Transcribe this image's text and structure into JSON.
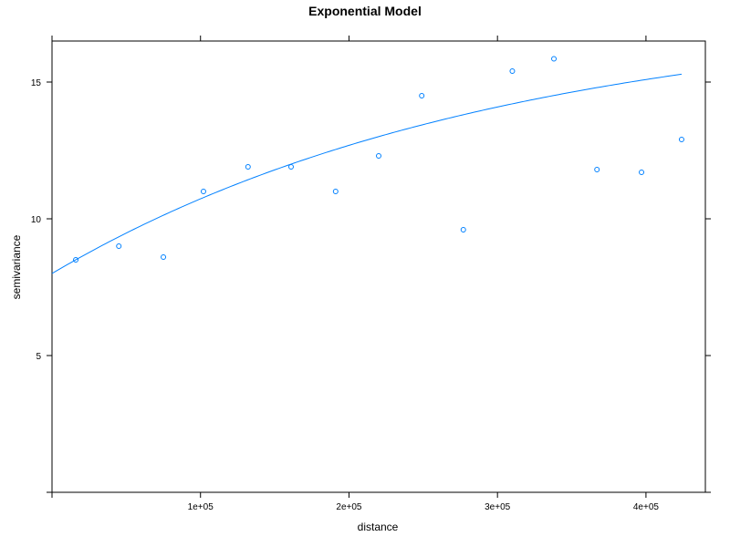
{
  "chart_data": {
    "type": "scatter",
    "title": "Exponential Model",
    "xlabel": "distance",
    "ylabel": "semivariance",
    "xlim": [
      0,
      440000
    ],
    "ylim": [
      0,
      16.5
    ],
    "x_ticks": [
      100000,
      200000,
      300000,
      400000
    ],
    "x_tick_labels": [
      "1e+05",
      "2e+05",
      "3e+05",
      "4e+05"
    ],
    "y_ticks": [
      5,
      10,
      15
    ],
    "y_tick_labels": [
      "5",
      "10",
      "15"
    ],
    "grid": false,
    "points": {
      "x": [
        16000,
        45000,
        75000,
        102000,
        132000,
        161000,
        191000,
        220000,
        249000,
        277000,
        310000,
        338000,
        367000,
        397000,
        424000
      ],
      "y": [
        8.5,
        9.0,
        8.6,
        11.0,
        11.9,
        11.9,
        11.0,
        12.3,
        14.5,
        9.6,
        15.4,
        15.85,
        11.8,
        11.7,
        12.9
      ]
    },
    "model_curve": {
      "model": "exponential",
      "nugget": 8.0,
      "partial_sill": 9.63,
      "range": 300000,
      "x_max": 424000
    },
    "colors": {
      "points": "#0080ff",
      "curve": "#0080ff",
      "frame": "#000000"
    }
  }
}
